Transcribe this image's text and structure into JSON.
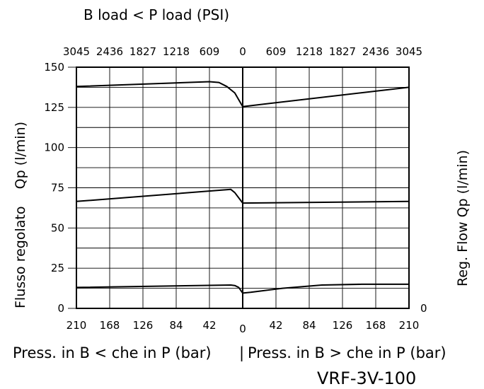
{
  "chart_data": {
    "type": "line",
    "top_title": "B load < P load (PSI)",
    "top_ticks": [
      "3045",
      "2436",
      "1827",
      "1218",
      "609",
      "0",
      "609",
      "1218",
      "1827",
      "2436",
      "3045"
    ],
    "bottom_ticks": [
      "210",
      "168",
      "126",
      "84",
      "42",
      "0",
      "42",
      "84",
      "126",
      "168",
      "210"
    ],
    "xlabel_left": "Press. in B < che in P (bar)",
    "xlabel_separator": "|",
    "xlabel_right": "Press. in B > che in P (bar)",
    "ylabel_left": "Flusso regolato    Qp (l/min)",
    "ylabel_right": "Reg. Flow Qp (l/min)",
    "right_zero_label": "0",
    "model_label": "VRF-3V-100",
    "ylim": [
      0,
      150
    ],
    "y_ticks": [
      0,
      25,
      50,
      75,
      100,
      125,
      150
    ],
    "x_axis_note": "x is signed pressure in bar: negative = B < P (left half), positive = B > P (right half)",
    "xlim": [
      -210,
      210
    ],
    "series": [
      {
        "x": [
          -210,
          -42,
          -30,
          -20,
          -10,
          0,
          210
        ],
        "y": [
          138,
          141,
          140.5,
          138,
          134,
          125.5,
          137.5
        ]
      },
      {
        "x": [
          -210,
          -15,
          -10,
          0,
          210
        ],
        "y": [
          66.5,
          74,
          72,
          65.5,
          66.5
        ]
      },
      {
        "x": [
          -210,
          -15,
          -10,
          -5,
          0,
          10,
          50,
          100,
          150,
          190,
          210
        ],
        "y": [
          13,
          14.5,
          14.2,
          13,
          9.5,
          10,
          12.5,
          14.5,
          15,
          15,
          15
        ]
      }
    ]
  }
}
